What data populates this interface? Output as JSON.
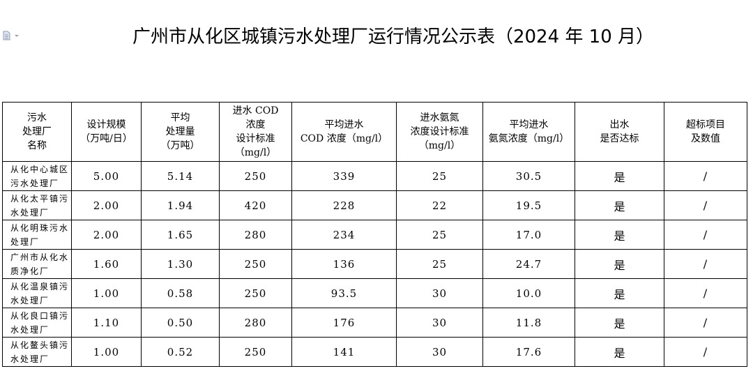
{
  "title": "广州市从化区城镇污水处理厂运行情况公示表（2024 年 10 月）",
  "icon": "document-dropdown-icon",
  "headers": [
    "污水\n处理厂\n名称",
    "设计规模\n（万吨/日）",
    "平均\n处理量\n（万吨）",
    "进水 COD\n浓度\n设计标准\n（mg/l）",
    "平均进水\nCOD 浓度（mg/l）",
    "进水氨氮\n浓度设计标准\n（mg/l）",
    "平均进水\n氨氮浓度（mg/l）",
    "出水\n是否达标",
    "超标项目\n及数值"
  ],
  "rows": [
    [
      "从化中心城区\n污水处理厂",
      "5.00",
      "5.14",
      "250",
      "339",
      "25",
      "30.5",
      "是",
      "/"
    ],
    [
      "从化太平镇污\n水处理厂",
      "2.00",
      "1.94",
      "420",
      "228",
      "22",
      "19.5",
      "是",
      "/"
    ],
    [
      "从化明珠污水\n处理厂",
      "2.00",
      "1.65",
      "280",
      "234",
      "25",
      "17.0",
      "是",
      "/"
    ],
    [
      "广州市从化水\n质净化厂",
      "1.60",
      "1.30",
      "250",
      "136",
      "25",
      "24.7",
      "是",
      "/"
    ],
    [
      "从化温泉镇污\n水处理厂",
      "1.00",
      "0.58",
      "250",
      "93.5",
      "30",
      "10.0",
      "是",
      "/"
    ],
    [
      "从化良口镇污\n水处理厂",
      "1.10",
      "0.50",
      "280",
      "176",
      "30",
      "11.8",
      "是",
      "/"
    ],
    [
      "从化鳌头镇污\n水处理厂",
      "1.00",
      "0.52",
      "250",
      "141",
      "30",
      "17.6",
      "是",
      "/"
    ]
  ]
}
